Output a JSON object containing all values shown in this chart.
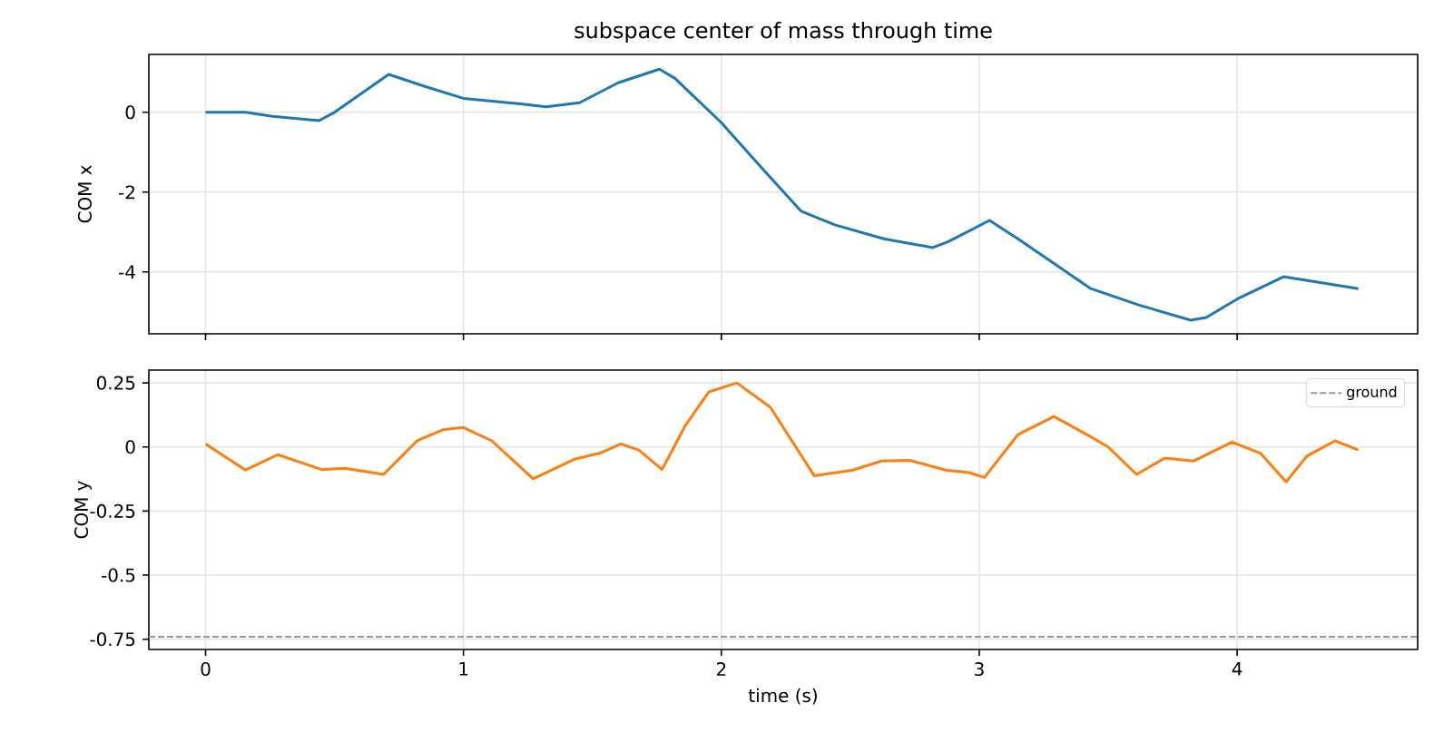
{
  "chart_data": [
    {
      "type": "line",
      "title": "subspace center of mass through time",
      "ylabel": "COM x",
      "xlim": [
        -0.22,
        4.7
      ],
      "xticks": [
        0,
        1,
        2,
        3,
        4
      ],
      "ylim": [
        -5.55,
        1.45
      ],
      "yticks": [
        -4,
        -2,
        0
      ],
      "grid": true,
      "tick_labels": "y",
      "series": [
        {
          "color": "#1f77b4",
          "x": [
            0,
            0.155,
            0.26,
            0.44,
            0.5,
            0.71,
            0.85,
            1.0,
            1.22,
            1.32,
            1.45,
            1.6,
            1.76,
            1.82,
            2.0,
            2.16,
            2.31,
            2.37,
            2.44,
            2.63,
            2.82,
            2.88,
            3.04,
            3.15,
            3.43,
            3.62,
            3.82,
            3.88,
            4.0,
            4.18,
            4.47
          ],
          "values": [
            0,
            0,
            -0.1,
            -0.21,
            0,
            0.95,
            0.65,
            0.35,
            0.21,
            0.14,
            0.24,
            0.74,
            1.08,
            0.85,
            -0.26,
            -1.42,
            -2.48,
            -2.64,
            -2.82,
            -3.17,
            -3.39,
            -3.24,
            -2.71,
            -3.17,
            -4.41,
            -4.83,
            -5.21,
            -5.14,
            -4.68,
            -4.12,
            -4.42
          ]
        }
      ]
    },
    {
      "type": "line",
      "ylabel": "COM y",
      "xlabel": "time (s)",
      "xlim": [
        -0.22,
        4.7
      ],
      "xticks": [
        0,
        1,
        2,
        3,
        4
      ],
      "ylim": [
        -0.79,
        0.3
      ],
      "yticks": [
        -0.75,
        -0.5,
        -0.25,
        0,
        0.25
      ],
      "grid": true,
      "legend": "top right",
      "ref_lines": [
        {
          "axis": "y",
          "value": -0.74,
          "label": "ground",
          "color": "#999999",
          "line_style": "dashed"
        }
      ],
      "series": [
        {
          "color": "#ff7f0e",
          "x": [
            0,
            0.155,
            0.28,
            0.45,
            0.54,
            0.69,
            0.82,
            0.92,
            1.0,
            1.11,
            1.27,
            1.43,
            1.53,
            1.61,
            1.68,
            1.77,
            1.86,
            1.95,
            2.06,
            2.19,
            2.36,
            2.51,
            2.62,
            2.73,
            2.87,
            2.96,
            3.02,
            3.15,
            3.29,
            3.43,
            3.5,
            3.61,
            3.72,
            3.83,
            3.98,
            4.09,
            4.19,
            4.27,
            4.38,
            4.47
          ],
          "values": [
            0.012,
            -0.09,
            -0.03,
            -0.088,
            -0.083,
            -0.107,
            0.024,
            0.067,
            0.076,
            0.024,
            -0.124,
            -0.048,
            -0.024,
            0.012,
            -0.012,
            -0.088,
            0.083,
            0.214,
            0.25,
            0.155,
            -0.112,
            -0.09,
            -0.055,
            -0.052,
            -0.09,
            -0.1,
            -0.119,
            0.048,
            0.119,
            0.041,
            0.0,
            -0.107,
            -0.043,
            -0.055,
            0.019,
            -0.024,
            -0.136,
            -0.036,
            0.024,
            -0.012
          ]
        }
      ]
    }
  ]
}
